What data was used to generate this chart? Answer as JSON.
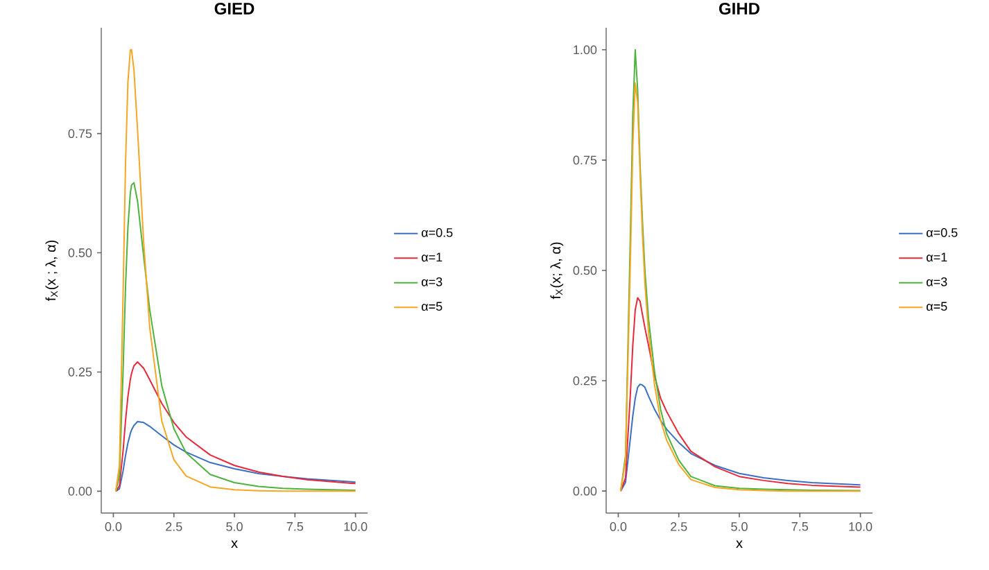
{
  "chart_data": [
    {
      "type": "line",
      "title": "GIED",
      "xlabel": "x",
      "ylabel": "f$_{X}$(x ; λ, α)",
      "x": [
        0.1,
        0.25,
        0.4,
        0.5,
        0.6,
        0.7,
        0.75,
        0.85,
        1,
        1.25,
        1.5,
        2,
        2.5,
        3,
        4,
        5,
        6,
        7,
        8,
        10
      ],
      "series": [
        {
          "name": "α=0.5",
          "color": "#3a6fc4",
          "values": [
            0,
            0.005,
            0.042,
            0.074,
            0.101,
            0.121,
            0.128,
            0.138,
            0.146,
            0.144,
            0.136,
            0.116,
            0.097,
            0.082,
            0.06,
            0.047,
            0.037,
            0.031,
            0.026,
            0.019
          ]
        },
        {
          "name": "α=1",
          "color": "#e8283a",
          "values": [
            0,
            0.011,
            0.084,
            0.147,
            0.198,
            0.234,
            0.247,
            0.263,
            0.271,
            0.258,
            0.234,
            0.184,
            0.144,
            0.114,
            0.076,
            0.054,
            0.04,
            0.031,
            0.024,
            0.016
          ]
        },
        {
          "name": "α=3",
          "color": "#4db33d",
          "values": [
            0,
            0.032,
            0.249,
            0.425,
            0.553,
            0.625,
            0.642,
            0.647,
            0.608,
            0.493,
            0.381,
            0.221,
            0.131,
            0.081,
            0.035,
            0.018,
            0.01,
            0.006,
            0.004,
            0.002
          ]
        },
        {
          "name": "α=5",
          "color": "#f5a623",
          "values": [
            0,
            0.054,
            0.41,
            0.683,
            0.857,
            0.925,
            0.926,
            0.883,
            0.757,
            0.523,
            0.344,
            0.147,
            0.066,
            0.032,
            0.009,
            0.003,
            0.001,
            0,
            0,
            0
          ]
        }
      ],
      "xlim": [
        -0.5,
        10.5
      ],
      "ylim": [
        -0.046,
        0.972
      ],
      "xticks": [
        {
          "value": 0,
          "label": "0.0"
        },
        {
          "value": 2.5,
          "label": "2.5"
        },
        {
          "value": 5,
          "label": "5.0"
        },
        {
          "value": 7.5,
          "label": "7.5"
        },
        {
          "value": 10,
          "label": "10.0"
        }
      ],
      "yticks": [
        {
          "value": 0,
          "label": "0.00"
        },
        {
          "value": 0.25,
          "label": "0.25"
        },
        {
          "value": 0.5,
          "label": "0.50"
        },
        {
          "value": 0.75,
          "label": "0.75"
        }
      ],
      "legend": "right"
    },
    {
      "type": "line",
      "title": "GIHD",
      "xlabel": "x",
      "ylabel": "f$_{X}$(x; λ, α)",
      "x": [
        0.1,
        0.3,
        0.5,
        0.6,
        0.7,
        0.8,
        0.9,
        1.0,
        1.1,
        1.25,
        1.5,
        1.75,
        2,
        2.5,
        3,
        4,
        5,
        6,
        7,
        8,
        10
      ],
      "series": [
        {
          "name": "α=0.5",
          "color": "#3a6fc4",
          "values": [
            0,
            0.02,
            0.12,
            0.17,
            0.21,
            0.235,
            0.242,
            0.24,
            0.235,
            0.215,
            0.185,
            0.16,
            0.14,
            0.11,
            0.085,
            0.058,
            0.04,
            0.03,
            0.024,
            0.019,
            0.014
          ]
        },
        {
          "name": "α=1",
          "color": "#e8283a",
          "values": [
            0,
            0.03,
            0.22,
            0.33,
            0.41,
            0.438,
            0.43,
            0.4,
            0.37,
            0.33,
            0.26,
            0.21,
            0.18,
            0.13,
            0.09,
            0.055,
            0.033,
            0.024,
            0.017,
            0.013,
            0.009
          ]
        },
        {
          "name": "α=3",
          "color": "#4db33d",
          "values": [
            0,
            0.08,
            0.58,
            0.85,
            1.0,
            0.91,
            0.74,
            0.61,
            0.5,
            0.39,
            0.27,
            0.185,
            0.13,
            0.07,
            0.033,
            0.012,
            0.006,
            0.004,
            0.003,
            0.002,
            0.001
          ]
        },
        {
          "name": "α=5",
          "color": "#f5a623",
          "values": [
            0,
            0.07,
            0.52,
            0.78,
            0.925,
            0.88,
            0.72,
            0.58,
            0.47,
            0.36,
            0.24,
            0.16,
            0.115,
            0.06,
            0.026,
            0.008,
            0.003,
            0.001,
            0,
            0,
            0
          ]
        }
      ],
      "xlim": [
        -0.5,
        10.5
      ],
      "ylim": [
        -0.05,
        1.05
      ],
      "xticks": [
        {
          "value": 0,
          "label": "0.0"
        },
        {
          "value": 2.5,
          "label": "2.5"
        },
        {
          "value": 5,
          "label": "5.0"
        },
        {
          "value": 7.5,
          "label": "7.5"
        },
        {
          "value": 10,
          "label": "10.0"
        }
      ],
      "yticks": [
        {
          "value": 0,
          "label": "0.00"
        },
        {
          "value": 0.25,
          "label": "0.25"
        },
        {
          "value": 0.5,
          "label": "0.50"
        },
        {
          "value": 0.75,
          "label": "0.75"
        },
        {
          "value": 1,
          "label": "1.00"
        }
      ],
      "legend": "right"
    }
  ]
}
